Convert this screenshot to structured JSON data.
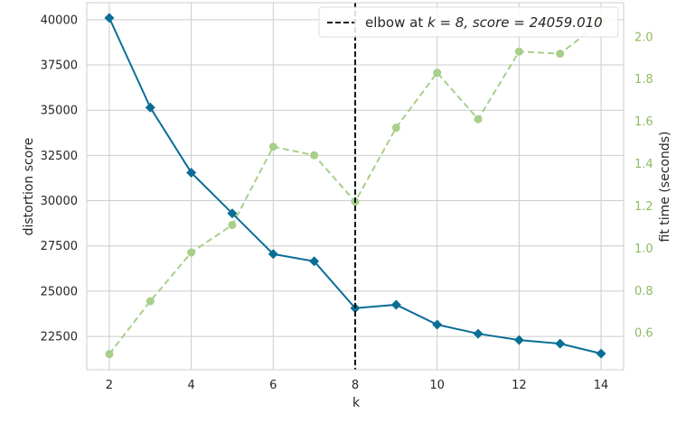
{
  "chart_data": {
    "type": "line",
    "xlabel": "k",
    "ylabel": "distortion score",
    "y2label": "fit time (seconds)",
    "x_ticks": [
      2,
      4,
      6,
      8,
      10,
      12,
      14
    ],
    "y_ticks": [
      22500,
      25000,
      27500,
      30000,
      32500,
      35000,
      37500,
      40000
    ],
    "y_tick_labels": [
      "22500",
      "25000",
      "27500",
      "30000",
      "32500",
      "35000",
      "37500",
      "40000"
    ],
    "y2_ticks": [
      0.6,
      0.8,
      1.0,
      1.2,
      1.4,
      1.6,
      1.8,
      2.0
    ],
    "y2_tick_labels": [
      "0.6",
      "0.8",
      "1.0",
      "1.2",
      "1.4",
      "1.6",
      "1.8",
      "2.0"
    ],
    "xlim": [
      1.45,
      14.55
    ],
    "ylim": [
      20660,
      40940
    ],
    "y2lim": [
      0.426,
      2.161
    ],
    "grid": true,
    "legend_position": "top-right",
    "series": [
      {
        "axis": "left",
        "marker": "diamond",
        "color": "#0a6e96",
        "x": [
          2,
          3,
          4,
          5,
          6,
          7,
          8,
          9,
          10,
          11,
          12,
          13,
          14
        ],
        "values": [
          40100,
          35150,
          31550,
          29300,
          27050,
          26650,
          24060,
          24250,
          23150,
          22650,
          22300,
          22100,
          21550
        ]
      },
      {
        "axis": "right",
        "marker": "circle",
        "color": "#a8cf8a",
        "dashed": true,
        "x": [
          2,
          3,
          4,
          5,
          6,
          7,
          8,
          9,
          10,
          11,
          12,
          13,
          14
        ],
        "values": [
          0.5,
          0.75,
          0.98,
          1.11,
          1.48,
          1.44,
          1.22,
          1.57,
          1.83,
          1.61,
          1.93,
          1.92,
          2.07
        ]
      }
    ],
    "elbow": {
      "k": 8,
      "legend_prefix": "elbow at ",
      "legend_formula": "k = 8, score = 24059.010",
      "color": "#111111"
    },
    "right_axis_color": "#8dbb62"
  }
}
